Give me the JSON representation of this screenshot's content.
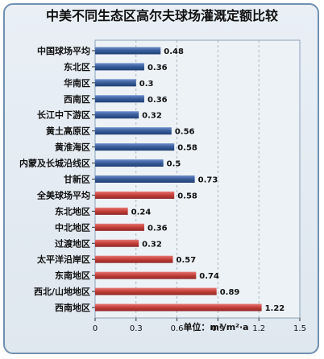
{
  "chart_data": {
    "type": "bar",
    "orientation": "horizontal",
    "title": "中美不同生态区高尔夫球场灌溉定额比较",
    "unit_label": "单位：m³/m²·a",
    "xlim": [
      0,
      1.5
    ],
    "xticks": [
      "0",
      "0.3",
      "0.6",
      "0.9",
      "1.2",
      "1.5"
    ],
    "grid": "vertical-dashed",
    "colors": {
      "china": "#3a5f9e",
      "usa": "#c8423c"
    },
    "categories": [
      "中国球场平均",
      "东北区",
      "华南区",
      "西南区",
      "长江中下游区",
      "黄土高原区",
      "黄淮海区",
      "内蒙及长城沿线区",
      "甘新区",
      "全美球场平均",
      "东北地区",
      "中北地区",
      "过渡地区",
      "太平洋沿岸区",
      "东南地区",
      "西北/山地地区",
      "西南地区"
    ],
    "values": [
      0.48,
      0.36,
      0.3,
      0.36,
      0.32,
      0.56,
      0.58,
      0.5,
      0.73,
      0.58,
      0.24,
      0.36,
      0.32,
      0.57,
      0.74,
      0.89,
      1.22
    ],
    "value_labels": [
      "0.48",
      "0.36",
      "0.3",
      "0.36",
      "0.32",
      "0.56",
      "0.58",
      "0.5",
      "0.73",
      "0.58",
      "0.24",
      "0.36",
      "0.32",
      "0.57",
      "0.74",
      "0.89",
      "1.22"
    ],
    "groups": [
      "china",
      "china",
      "china",
      "china",
      "china",
      "china",
      "china",
      "china",
      "china",
      "usa",
      "usa",
      "usa",
      "usa",
      "usa",
      "usa",
      "usa",
      "usa"
    ]
  }
}
